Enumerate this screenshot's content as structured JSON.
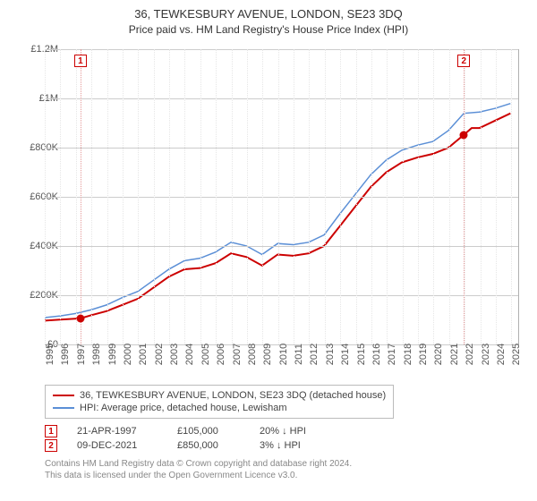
{
  "title": "36, TEWKESBURY AVENUE, LONDON, SE23 3DQ",
  "subtitle": "Price paid vs. HM Land Registry's House Price Index (HPI)",
  "chart": {
    "type": "line",
    "background_color": "#ffffff",
    "grid_color": "#cccccc",
    "minor_grid_color": "#e6e6e6",
    "y_axis": {
      "min": 0,
      "max": 1200000,
      "ticks": [
        0,
        200000,
        400000,
        600000,
        800000,
        1000000,
        1200000
      ],
      "labels": [
        "£0",
        "£200K",
        "£400K",
        "£600K",
        "£800K",
        "£1M",
        "£1.2M"
      ],
      "label_fontsize": 11,
      "label_color": "#555555"
    },
    "x_axis": {
      "min": 1995,
      "max": 2025.5,
      "ticks": [
        1995,
        1996,
        1997,
        1998,
        1999,
        2000,
        2001,
        2002,
        2003,
        2004,
        2005,
        2006,
        2007,
        2008,
        2009,
        2010,
        2011,
        2012,
        2013,
        2014,
        2015,
        2016,
        2017,
        2018,
        2019,
        2020,
        2021,
        2022,
        2023,
        2024,
        2025
      ],
      "label_fontsize": 11,
      "label_color": "#555555"
    },
    "series": [
      {
        "name": "36, TEWKESBURY AVENUE, LONDON, SE23 3DQ (detached house)",
        "color": "#cc0000",
        "line_width": 2,
        "data": [
          [
            1995,
            96000
          ],
          [
            1996,
            100000
          ],
          [
            1997.3,
            105000
          ],
          [
            1998,
            118000
          ],
          [
            1999,
            135000
          ],
          [
            2000,
            160000
          ],
          [
            2001,
            185000
          ],
          [
            2002,
            230000
          ],
          [
            2003,
            275000
          ],
          [
            2004,
            305000
          ],
          [
            2005,
            310000
          ],
          [
            2006,
            330000
          ],
          [
            2007,
            370000
          ],
          [
            2008,
            355000
          ],
          [
            2009,
            320000
          ],
          [
            2010,
            365000
          ],
          [
            2011,
            360000
          ],
          [
            2012,
            370000
          ],
          [
            2013,
            400000
          ],
          [
            2014,
            480000
          ],
          [
            2015,
            560000
          ],
          [
            2016,
            640000
          ],
          [
            2017,
            700000
          ],
          [
            2018,
            740000
          ],
          [
            2019,
            760000
          ],
          [
            2020,
            775000
          ],
          [
            2021,
            800000
          ],
          [
            2021.95,
            850000
          ],
          [
            2022.5,
            880000
          ],
          [
            2023,
            880000
          ],
          [
            2024,
            910000
          ],
          [
            2025,
            940000
          ]
        ]
      },
      {
        "name": "HPI: Average price, detached house, Lewisham",
        "color": "#5b8fd6",
        "line_width": 1.5,
        "data": [
          [
            1995,
            108000
          ],
          [
            1996,
            115000
          ],
          [
            1997,
            125000
          ],
          [
            1998,
            140000
          ],
          [
            1999,
            160000
          ],
          [
            2000,
            190000
          ],
          [
            2001,
            215000
          ],
          [
            2002,
            260000
          ],
          [
            2003,
            305000
          ],
          [
            2004,
            340000
          ],
          [
            2005,
            350000
          ],
          [
            2006,
            375000
          ],
          [
            2007,
            415000
          ],
          [
            2008,
            400000
          ],
          [
            2009,
            365000
          ],
          [
            2010,
            410000
          ],
          [
            2011,
            405000
          ],
          [
            2012,
            415000
          ],
          [
            2013,
            445000
          ],
          [
            2014,
            530000
          ],
          [
            2015,
            610000
          ],
          [
            2016,
            690000
          ],
          [
            2017,
            750000
          ],
          [
            2018,
            790000
          ],
          [
            2019,
            810000
          ],
          [
            2020,
            825000
          ],
          [
            2021,
            870000
          ],
          [
            2022,
            940000
          ],
          [
            2023,
            945000
          ],
          [
            2024,
            960000
          ],
          [
            2025,
            980000
          ]
        ]
      }
    ],
    "sale_markers": [
      {
        "n": "1",
        "x": 1997.3,
        "y": 105000,
        "box_top": true
      },
      {
        "n": "2",
        "x": 2021.95,
        "y": 850000,
        "box_top": true
      }
    ]
  },
  "legend": {
    "items": [
      {
        "color": "#cc0000",
        "label": "36, TEWKESBURY AVENUE, LONDON, SE23 3DQ (detached house)"
      },
      {
        "color": "#5b8fd6",
        "label": "HPI: Average price, detached house, Lewisham"
      }
    ]
  },
  "sales": [
    {
      "n": "1",
      "date": "21-APR-1997",
      "price": "£105,000",
      "pct": "20%",
      "arrow": "↓",
      "vs": "HPI"
    },
    {
      "n": "2",
      "date": "09-DEC-2021",
      "price": "£850,000",
      "pct": "3%",
      "arrow": "↓",
      "vs": "HPI"
    }
  ],
  "footnote_line1": "Contains HM Land Registry data © Crown copyright and database right 2024.",
  "footnote_line2": "This data is licensed under the Open Government Licence v3.0."
}
